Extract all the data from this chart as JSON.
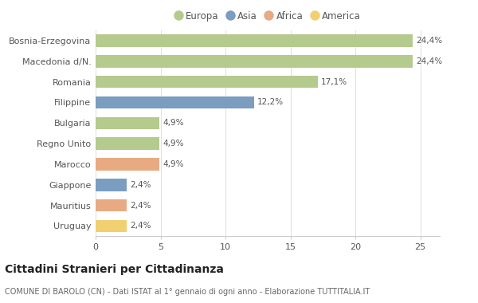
{
  "categories": [
    "Bosnia-Erzegovina",
    "Macedonia d/N.",
    "Romania",
    "Filippine",
    "Bulgaria",
    "Regno Unito",
    "Marocco",
    "Giappone",
    "Mauritius",
    "Uruguay"
  ],
  "values": [
    24.4,
    24.4,
    17.1,
    12.2,
    4.9,
    4.9,
    4.9,
    2.4,
    2.4,
    2.4
  ],
  "labels": [
    "24,4%",
    "24,4%",
    "17,1%",
    "12,2%",
    "4,9%",
    "4,9%",
    "4,9%",
    "2,4%",
    "2,4%",
    "2,4%"
  ],
  "colors": [
    "#b5ca8d",
    "#b5ca8d",
    "#b5ca8d",
    "#7a9dc0",
    "#b5ca8d",
    "#b5ca8d",
    "#e8aa82",
    "#7a9dc0",
    "#e8aa82",
    "#f0d070"
  ],
  "legend": [
    {
      "label": "Europa",
      "color": "#b5ca8d"
    },
    {
      "label": "Asia",
      "color": "#7a9dc0"
    },
    {
      "label": "Africa",
      "color": "#e8aa82"
    },
    {
      "label": "America",
      "color": "#f0d070"
    }
  ],
  "xlim": [
    0,
    26.5
  ],
  "xticks": [
    0,
    5,
    10,
    15,
    20,
    25
  ],
  "title": "Cittadini Stranieri per Cittadinanza",
  "subtitle": "COMUNE DI BAROLO (CN) - Dati ISTAT al 1° gennaio di ogni anno - Elaborazione TUTTITALIA.IT",
  "background_color": "#ffffff"
}
